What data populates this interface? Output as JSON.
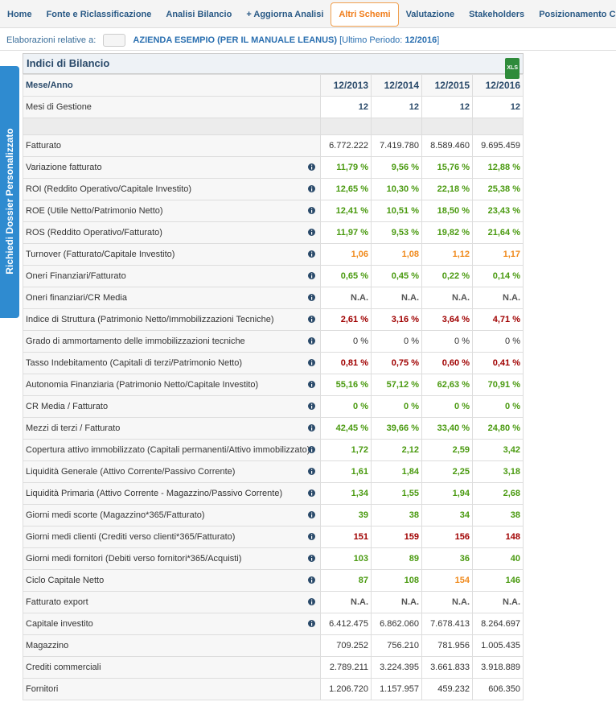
{
  "nav": {
    "items": [
      "Home",
      "Fonte e Riclassificazione",
      "Analisi Bilancio",
      "+ Aggiorna Analisi",
      "Altri Schemi",
      "Valutazione",
      "Stakeholders",
      "Posizionamento Competitivo"
    ],
    "active": 4
  },
  "subheader": {
    "label": "Elaborazioni relative a:",
    "company": "AZIENDA ESEMPIO (PER IL MANUALE LEANUS)",
    "period_label": "[Ultimo Periodo:",
    "period": "12/2016",
    "period_end": "]"
  },
  "side_tab": "Richiedi Dossier Personalizzato",
  "panel": {
    "title": "Indici di Bilancio",
    "export": "XLS"
  },
  "table": {
    "header": [
      "Mese/Anno",
      "12/2013",
      "12/2014",
      "12/2015",
      "12/2016"
    ],
    "rows": [
      {
        "label": "Mesi di Gestione",
        "info": false,
        "values": [
          "12",
          "12",
          "12",
          "12"
        ],
        "tones": [
          "bold",
          "bold",
          "bold",
          "bold"
        ]
      },
      {
        "label": "Fatturato",
        "info": false,
        "values": [
          "6.772.222",
          "7.419.780",
          "8.589.460",
          "9.695.459"
        ],
        "tones": [
          "plain",
          "plain",
          "plain",
          "plain"
        ]
      },
      {
        "label": "Variazione fatturato",
        "info": true,
        "values": [
          "11,79 %",
          "9,56 %",
          "15,76 %",
          "12,88 %"
        ],
        "tones": [
          "green",
          "green",
          "green",
          "green"
        ]
      },
      {
        "label": "ROI (Reddito Operativo/Capitale Investito)",
        "info": true,
        "values": [
          "12,65 %",
          "10,30 %",
          "22,18 %",
          "25,38 %"
        ],
        "tones": [
          "green",
          "green",
          "green",
          "green"
        ]
      },
      {
        "label": "ROE (Utile Netto/Patrimonio Netto)",
        "info": true,
        "values": [
          "12,41 %",
          "10,51 %",
          "18,50 %",
          "23,43 %"
        ],
        "tones": [
          "green",
          "green",
          "green",
          "green"
        ]
      },
      {
        "label": "ROS (Reddito Operativo/Fatturato)",
        "info": true,
        "values": [
          "11,97 %",
          "9,53 %",
          "19,82 %",
          "21,64 %"
        ],
        "tones": [
          "green",
          "green",
          "green",
          "green"
        ]
      },
      {
        "label": "Turnover (Fatturato/Capitale Investito)",
        "info": true,
        "values": [
          "1,06",
          "1,08",
          "1,12",
          "1,17"
        ],
        "tones": [
          "orange",
          "orange",
          "orange",
          "orange"
        ]
      },
      {
        "label": "Oneri Finanziari/Fatturato",
        "info": true,
        "values": [
          "0,65 %",
          "0,45 %",
          "0,22 %",
          "0,14 %"
        ],
        "tones": [
          "green",
          "green",
          "green",
          "green"
        ]
      },
      {
        "label": "Oneri finanziari/CR Media",
        "info": true,
        "values": [
          "N.A.",
          "N.A.",
          "N.A.",
          "N.A."
        ],
        "tones": [
          "na",
          "na",
          "na",
          "na"
        ]
      },
      {
        "label": "Indice di Struttura (Patrimonio Netto/Immobilizzazioni Tecniche)",
        "info": true,
        "values": [
          "2,61 %",
          "3,16 %",
          "3,64 %",
          "4,71 %"
        ],
        "tones": [
          "red",
          "red",
          "red",
          "red"
        ]
      },
      {
        "label": "Grado di ammortamento delle immobilizzazioni tecniche",
        "info": true,
        "values": [
          "0 %",
          "0 %",
          "0 %",
          "0 %"
        ],
        "tones": [
          "plain",
          "plain",
          "plain",
          "plain"
        ]
      },
      {
        "label": "Tasso Indebitamento (Capitali di terzi/Patrimonio Netto)",
        "info": true,
        "values": [
          "0,81 %",
          "0,75 %",
          "0,60 %",
          "0,41 %"
        ],
        "tones": [
          "red",
          "red",
          "red",
          "red"
        ]
      },
      {
        "label": "Autonomia Finanziaria (Patrimonio Netto/Capitale Investito)",
        "info": true,
        "values": [
          "55,16 %",
          "57,12 %",
          "62,63 %",
          "70,91 %"
        ],
        "tones": [
          "green",
          "green",
          "green",
          "green"
        ]
      },
      {
        "label": "CR Media / Fatturato",
        "info": true,
        "values": [
          "0 %",
          "0 %",
          "0 %",
          "0 %"
        ],
        "tones": [
          "green",
          "green",
          "green",
          "green"
        ]
      },
      {
        "label": "Mezzi di terzi / Fatturato",
        "info": true,
        "values": [
          "42,45 %",
          "39,66 %",
          "33,40 %",
          "24,80 %"
        ],
        "tones": [
          "green",
          "green",
          "green",
          "green"
        ]
      },
      {
        "label": "Copertura attivo immobilizzato (Capitali permanenti/Attivo immobilizzato)",
        "info": true,
        "values": [
          "1,72",
          "2,12",
          "2,59",
          "3,42"
        ],
        "tones": [
          "green",
          "green",
          "green",
          "green"
        ]
      },
      {
        "label": "Liquidità Generale (Attivo Corrente/Passivo Corrente)",
        "info": true,
        "values": [
          "1,61",
          "1,84",
          "2,25",
          "3,18"
        ],
        "tones": [
          "green",
          "green",
          "green",
          "green"
        ]
      },
      {
        "label": "Liquidità Primaria (Attivo Corrente - Magazzino/Passivo Corrente)",
        "info": true,
        "values": [
          "1,34",
          "1,55",
          "1,94",
          "2,68"
        ],
        "tones": [
          "green",
          "green",
          "green",
          "green"
        ]
      },
      {
        "label": "Giorni medi scorte (Magazzino*365/Fatturato)",
        "info": true,
        "values": [
          "39",
          "38",
          "34",
          "38"
        ],
        "tones": [
          "green",
          "green",
          "green",
          "green"
        ]
      },
      {
        "label": "Giorni medi clienti (Crediti verso clienti*365/Fatturato)",
        "info": true,
        "values": [
          "151",
          "159",
          "156",
          "148"
        ],
        "tones": [
          "red",
          "red",
          "red",
          "red"
        ]
      },
      {
        "label": "Giorni medi fornitori (Debiti verso fornitori*365/Acquisti)",
        "info": true,
        "values": [
          "103",
          "89",
          "36",
          "40"
        ],
        "tones": [
          "green",
          "green",
          "green",
          "green"
        ]
      },
      {
        "label": "Ciclo Capitale Netto",
        "info": true,
        "values": [
          "87",
          "108",
          "154",
          "146"
        ],
        "tones": [
          "green",
          "green",
          "orange",
          "green"
        ]
      },
      {
        "label": "Fatturato export",
        "info": true,
        "values": [
          "N.A.",
          "N.A.",
          "N.A.",
          "N.A."
        ],
        "tones": [
          "na",
          "na",
          "na",
          "na"
        ]
      },
      {
        "label": "Capitale investito",
        "info": true,
        "values": [
          "6.412.475",
          "6.862.060",
          "7.678.413",
          "8.264.697"
        ],
        "tones": [
          "plain",
          "plain",
          "plain",
          "plain"
        ]
      },
      {
        "label": "Magazzino",
        "info": false,
        "values": [
          "709.252",
          "756.210",
          "781.956",
          "1.005.435"
        ],
        "tones": [
          "plain",
          "plain",
          "plain",
          "plain"
        ]
      },
      {
        "label": "Crediti commerciali",
        "info": false,
        "values": [
          "2.789.211",
          "3.224.395",
          "3.661.833",
          "3.918.889"
        ],
        "tones": [
          "plain",
          "plain",
          "plain",
          "plain"
        ]
      },
      {
        "label": "Fornitori",
        "info": false,
        "values": [
          "1.206.720",
          "1.157.957",
          "459.232",
          "606.350"
        ],
        "tones": [
          "plain",
          "plain",
          "plain",
          "plain"
        ]
      }
    ]
  }
}
